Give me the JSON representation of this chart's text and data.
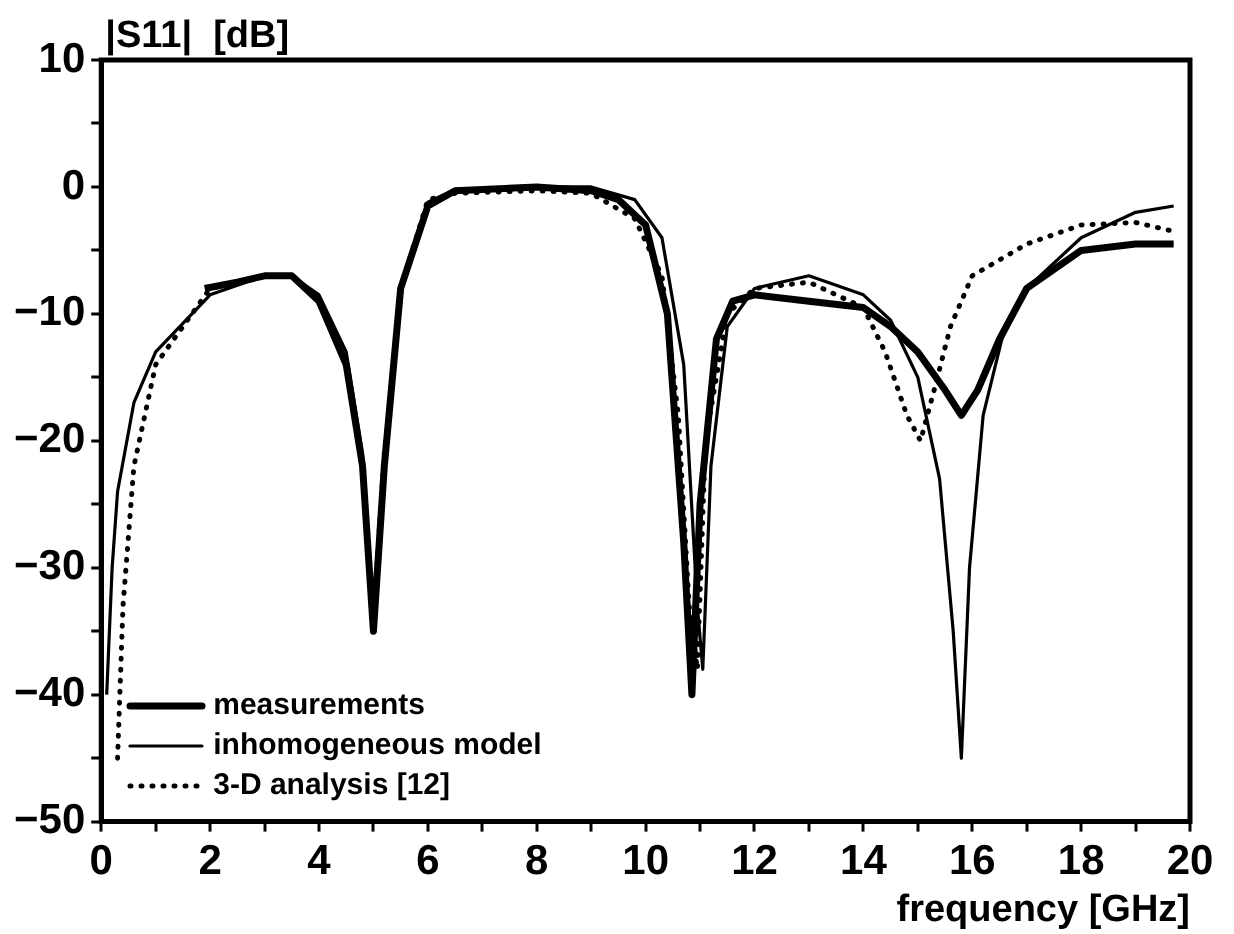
{
  "chart_data": {
    "type": "line",
    "xlabel": "frequency [GHz]",
    "ylabel": "|S11|  [dB]",
    "xlim": [
      0,
      20
    ],
    "ylim": [
      -50,
      10
    ],
    "xticks": [
      0,
      {
        "value": 1,
        "label": null
      },
      2,
      {
        "value": 3,
        "label": null
      },
      4,
      {
        "value": 5,
        "label": null
      },
      6,
      {
        "value": 7,
        "label": null
      },
      8,
      {
        "value": 9,
        "label": null
      },
      10,
      {
        "value": 11,
        "label": null
      },
      12,
      {
        "value": 13,
        "label": null
      },
      14,
      {
        "value": 15,
        "label": null
      },
      16,
      {
        "value": 17,
        "label": null
      },
      18,
      {
        "value": 19,
        "label": null
      },
      20
    ],
    "yticks": [
      -50,
      {
        "value": -45,
        "label": null
      },
      -40,
      {
        "value": -35,
        "label": null
      },
      -30,
      {
        "value": -25,
        "label": null
      },
      -20,
      {
        "value": -15,
        "label": null
      },
      -10,
      {
        "value": -5,
        "label": null
      },
      0,
      {
        "value": 5,
        "label": null
      },
      10
    ],
    "grid": false,
    "legend": "bottom left",
    "marker": "none",
    "series": [
      {
        "name": "measurements",
        "color": "#000000",
        "line_style": "solid",
        "x": [
          1.9,
          2.5,
          3,
          3.5,
          4,
          4.5,
          4.8,
          5,
          5.2,
          5.5,
          6,
          6.5,
          8,
          9,
          9.5,
          10,
          10.4,
          10.7,
          10.85,
          11,
          11.3,
          11.6,
          12,
          13,
          14,
          14.5,
          15,
          15.5,
          15.8,
          16.1,
          16.5,
          17,
          18,
          19,
          19.7
        ],
        "values": [
          -8,
          -7.5,
          -7,
          -7,
          -9,
          -14,
          -22,
          -35,
          -22,
          -8,
          -1.5,
          -0.3,
          0,
          -0.3,
          -1,
          -3,
          -10,
          -28,
          -40,
          -25,
          -12,
          -9,
          -8.5,
          -9,
          -9.5,
          -11,
          -13,
          -16,
          -18,
          -16,
          -12,
          -8,
          -5,
          -4.5,
          -4.5
        ]
      },
      {
        "name": "inhomogeneous model",
        "color": "#000000",
        "line_style": "solid",
        "x": [
          0.1,
          0.2,
          0.3,
          0.6,
          1,
          2,
          3,
          3.5,
          4,
          4.5,
          4.8,
          5,
          5.2,
          5.5,
          6,
          6.5,
          8,
          9,
          9.8,
          10.3,
          10.7,
          10.95,
          11.05,
          11.2,
          11.5,
          12,
          13,
          14,
          14.5,
          15,
          15.4,
          15.65,
          15.8,
          15.95,
          16.2,
          16.6,
          17,
          18,
          19,
          19.7
        ],
        "values": [
          -40,
          -30,
          -24,
          -17,
          -13,
          -8.5,
          -7,
          -7,
          -8.5,
          -13,
          -21,
          -34,
          -21,
          -8,
          -1.2,
          -0.2,
          0,
          0,
          -1,
          -4,
          -14,
          -33,
          -38,
          -22,
          -11,
          -8,
          -7,
          -8.5,
          -10.5,
          -15,
          -23,
          -35,
          -45,
          -30,
          -18,
          -11,
          -8,
          -4,
          -2,
          -1.5
        ]
      },
      {
        "name": "3-D analysis [12]",
        "color": "#000000",
        "line_style": "dotted",
        "x": [
          0.3,
          0.4,
          0.6,
          1,
          2,
          3,
          3.5,
          4,
          4.5,
          4.8,
          5,
          5.2,
          5.5,
          6,
          6.5,
          8,
          9,
          9.8,
          10.3,
          10.6,
          10.8,
          10.95,
          11.1,
          11.5,
          12,
          13,
          14,
          14.4,
          14.8,
          15.05,
          15.3,
          15.6,
          16,
          17,
          18,
          19,
          19.7
        ],
        "values": [
          -45,
          -33,
          -22,
          -14,
          -8,
          -7,
          -7,
          -9,
          -14,
          -22,
          -34,
          -21,
          -8,
          -1,
          -0.5,
          -0.3,
          -0.5,
          -2.5,
          -7,
          -18,
          -33,
          -38,
          -20,
          -10,
          -8,
          -7.5,
          -9.5,
          -13,
          -18,
          -20,
          -16,
          -11,
          -7,
          -4.5,
          -3,
          -2.8,
          -3.5
        ]
      }
    ]
  }
}
